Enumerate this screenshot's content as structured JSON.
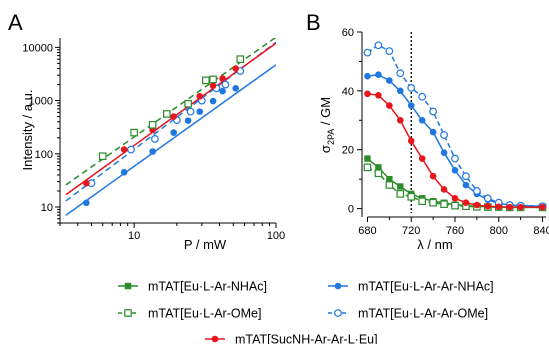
{
  "chart_data": [
    {
      "panel": "A",
      "type": "scatter",
      "xlabel": "P / mW",
      "ylabel": "Intensity / a.u.",
      "xscale": "log",
      "yscale": "log",
      "xlim": [
        3,
        100
      ],
      "ylim": [
        5,
        15000
      ],
      "xticks": [
        10,
        100
      ],
      "xtick_labels": [
        "10",
        "100"
      ],
      "yticks": [
        10,
        100,
        1000,
        10000
      ],
      "ytick_labels": [
        "10",
        "100",
        "1000",
        "10000"
      ],
      "grid": false,
      "series": [
        {
          "name": "mTAT[Eu·L-Ar-Ar-NHAc]",
          "color": "#1f77e0",
          "marker": "circle-filled",
          "line": "solid",
          "x": [
            4.6,
            8.5,
            13.5,
            19,
            24,
            29,
            36,
            42,
            52
          ],
          "y": [
            12,
            45,
            110,
            250,
            420,
            620,
            980,
            1500,
            1700
          ]
        },
        {
          "name": "mTAT[Eu·L-Ar-Ar-OMe]",
          "color": "#1f77e0",
          "marker": "circle-open",
          "line": "dashed",
          "x": [
            5.0,
            9.5,
            14,
            20,
            25,
            30,
            38,
            44,
            56
          ],
          "y": [
            28,
            120,
            190,
            430,
            620,
            1000,
            1700,
            2000,
            3600
          ]
        },
        {
          "name": "mTAT[SucNH-Ar-Ar-L·Eu]",
          "color": "#e8151b",
          "marker": "circle-filled",
          "line": "solid",
          "x": [
            4.6,
            8.5,
            13.5,
            19,
            24,
            29,
            36,
            42,
            52
          ],
          "y": [
            28,
            120,
            280,
            500,
            850,
            1200,
            1900,
            2600,
            4000
          ]
        },
        {
          "name": "mTAT[Eu·L-Ar-OMe]",
          "color": "#2a8c2a",
          "marker": "square-open",
          "line": "dashed",
          "x": [
            6.0,
            10,
            13.5,
            17,
            24,
            32,
            36,
            56
          ],
          "y": [
            90,
            250,
            350,
            560,
            870,
            2400,
            2500,
            6000
          ]
        }
      ],
      "fits": [
        {
          "color": "#1f77e0",
          "dash": false,
          "x": [
            3.3,
            100
          ],
          "y": [
            7.0,
            4700
          ]
        },
        {
          "color": "#1f77e0",
          "dash": true,
          "x": [
            3.3,
            100
          ],
          "y": [
            13.0,
            12500
          ]
        },
        {
          "color": "#e8151b",
          "dash": false,
          "x": [
            3.3,
            100
          ],
          "y": [
            17.0,
            12000
          ]
        },
        {
          "color": "#2a8c2a",
          "dash": true,
          "x": [
            3.3,
            100
          ],
          "y": [
            26.0,
            15500
          ]
        }
      ]
    },
    {
      "panel": "B",
      "type": "line",
      "xlabel": "λ / nm",
      "ylabel_main": "σ",
      "ylabel_sub": "2PA",
      "ylabel_unit": " / GM",
      "xlim": [
        675,
        845
      ],
      "ylim": [
        -1.5,
        60
      ],
      "xticks": [
        680,
        720,
        760,
        800,
        840
      ],
      "xtick_labels": [
        "680",
        "720",
        "760",
        "800",
        "840"
      ],
      "yticks": [
        0,
        20,
        40,
        60
      ],
      "ytick_labels": [
        "0",
        "20",
        "40",
        "60"
      ],
      "vline_x": 720,
      "grid": false,
      "series": [
        {
          "name": "mTAT[Eu·L-Ar-NHAc]",
          "color": "#2a8c2a",
          "marker": "square-filled",
          "line": "solid",
          "x": [
            680,
            690,
            700,
            710,
            720,
            730,
            740,
            750,
            760,
            770,
            780,
            790,
            800,
            810,
            820,
            840
          ],
          "y": [
            17,
            14,
            10,
            7.5,
            5,
            3.5,
            2.5,
            2,
            1.3,
            1,
            0.8,
            0.6,
            0.5,
            0.4,
            0.4,
            0.4
          ]
        },
        {
          "name": "mTAT[Eu·L-Ar-OMe]",
          "color": "#2a8c2a",
          "marker": "square-open",
          "line": "dashed",
          "x": [
            680,
            690,
            700,
            710,
            720,
            730,
            740,
            750,
            760,
            770,
            780,
            790,
            800,
            810,
            820,
            840
          ],
          "y": [
            14,
            12,
            8,
            5,
            4,
            2.5,
            2,
            1.5,
            1,
            0.8,
            0.6,
            0.5,
            0.5,
            0.4,
            0.4,
            0.4
          ]
        },
        {
          "name": "mTAT[Eu·L-Ar-Ar-NHAc]",
          "color": "#1f77e0",
          "marker": "circle-filled",
          "line": "solid",
          "x": [
            680,
            690,
            700,
            710,
            720,
            730,
            740,
            750,
            760,
            770,
            780,
            790,
            800,
            810,
            820,
            840
          ],
          "y": [
            45,
            45.5,
            43.5,
            40,
            35,
            30,
            26,
            19,
            13,
            8,
            5,
            3,
            1.8,
            1.2,
            1,
            0.8
          ]
        },
        {
          "name": "mTAT[Eu·L-Ar-Ar-OMe]",
          "color": "#1f77e0",
          "marker": "circle-open",
          "line": "dashed",
          "x": [
            680,
            690,
            700,
            710,
            720,
            730,
            740,
            750,
            760,
            770,
            780,
            790,
            800,
            810,
            820,
            840
          ],
          "y": [
            53,
            55.5,
            53.5,
            46,
            41,
            38,
            33,
            25,
            17,
            11,
            6,
            3.5,
            2,
            1.2,
            1,
            0.8
          ]
        },
        {
          "name": "mTAT[SucNH-Ar-Ar-L·Eu]",
          "color": "#e8151b",
          "marker": "circle-filled",
          "line": "solid",
          "x": [
            680,
            690,
            700,
            710,
            720,
            730,
            740,
            750,
            760,
            770,
            780,
            790,
            800,
            810,
            820,
            840
          ],
          "y": [
            39,
            38.5,
            35,
            30,
            23,
            17,
            11,
            6.5,
            3.5,
            2,
            1.2,
            0.8,
            0.6,
            0.5,
            0.5,
            0.5
          ]
        }
      ]
    }
  ],
  "legend": {
    "placement": "bottom",
    "items": [
      {
        "label": "mTAT[Eu·L-Ar-NHAc]",
        "color": "#2a8c2a",
        "marker": "square-filled",
        "dash": false
      },
      {
        "label": "mTAT[Eu·L-Ar-Ar-NHAc]",
        "color": "#1f77e0",
        "marker": "circle-filled",
        "dash": false
      },
      {
        "label": "mTAT[Eu·L-Ar-OMe]",
        "color": "#2a8c2a",
        "marker": "square-open",
        "dash": true
      },
      {
        "label": "mTAT[Eu·L-Ar-Ar-OMe]",
        "color": "#1f77e0",
        "marker": "circle-open",
        "dash": true
      },
      {
        "label": "mTAT[SucNH-Ar-Ar-L·Eu]",
        "color": "#e8151b",
        "marker": "circle-filled",
        "dash": false
      }
    ]
  }
}
